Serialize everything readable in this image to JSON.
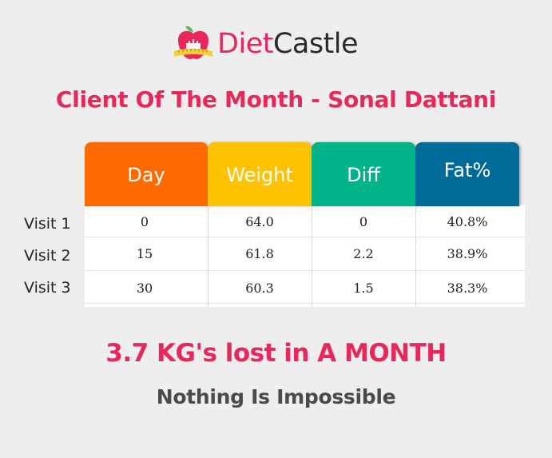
{
  "logo": {
    "text_part1": "Diet",
    "text_part2": "Castle",
    "icon": "apple-castle-measuring-tape-icon",
    "colors": {
      "brand_pink": "#e8285a",
      "dark": "#2a2a2a",
      "tape_yellow": "#f2d230"
    }
  },
  "headline": "Client Of The Month - Sonal Dattani",
  "table": {
    "columns": [
      {
        "label": "Day",
        "color": "#ff6a00"
      },
      {
        "label": "Weight",
        "color": "#ffc200"
      },
      {
        "label": "Diff",
        "color": "#00b388"
      },
      {
        "label": "Fat%",
        "color": "#006b99"
      }
    ],
    "rows": [
      {
        "label": "Visit 1",
        "cells": [
          "0",
          "64.0",
          "0",
          "40.8%"
        ]
      },
      {
        "label": "Visit 2",
        "cells": [
          "15",
          "61.8",
          "2.2",
          "38.9%"
        ]
      },
      {
        "label": "Visit 3",
        "cells": [
          "30",
          "60.3",
          "1.5",
          "38.3%"
        ]
      }
    ]
  },
  "result": "3.7 KG's lost in A MONTH",
  "tagline": "Nothing Is Impossible"
}
